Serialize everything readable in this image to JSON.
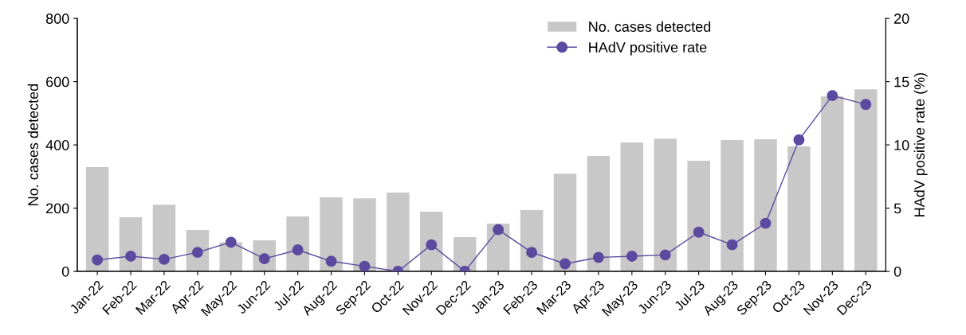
{
  "chart_data": {
    "type": "bar",
    "xlabel": null,
    "ylabel": "No. cases detected",
    "y2label": "HAdV positive rate (%)",
    "categories": [
      "Jan-22",
      "Feb-22",
      "Mar-22",
      "Apr-22",
      "May-22",
      "Jun-22",
      "Jul-22",
      "Aug-22",
      "Sep-22",
      "Oct-22",
      "Nov-22",
      "Dec-22",
      "Jan-23",
      "Feb-23",
      "Mar-23",
      "Apr-23",
      "May-23",
      "Jun-23",
      "Jul-23",
      "Aug-23",
      "Sep-23",
      "Oct-23",
      "Nov-23",
      "Dec-23"
    ],
    "series": [
      {
        "name": "No. cases detected",
        "color": "#c8c8c8",
        "values": [
          330,
          171,
          211,
          131,
          92,
          98,
          174,
          234,
          231,
          249,
          189,
          108,
          151,
          194,
          309,
          365,
          408,
          420,
          350,
          415,
          418,
          395,
          553,
          576
        ]
      },
      {
        "name": "HAdV positive rate",
        "type": "line",
        "axis": "y2",
        "color": "#5b4a9f",
        "values": [
          0.9,
          1.2,
          0.95,
          1.5,
          2.3,
          1.0,
          1.7,
          0.8,
          0.4,
          0,
          2.1,
          0,
          3.3,
          1.5,
          0.6,
          1.1,
          1.2,
          1.3,
          3.1,
          2.1,
          3.8,
          10.4,
          13.9,
          13.2
        ]
      }
    ],
    "ylim": [
      0,
      800
    ],
    "yticks": [
      0,
      200,
      400,
      600,
      800
    ],
    "y2lim": [
      0,
      20
    ],
    "y2ticks": [
      0,
      5,
      10,
      15,
      20
    ],
    "marker": "circle",
    "line_style": "solid",
    "grid": false,
    "legend": "top right"
  }
}
